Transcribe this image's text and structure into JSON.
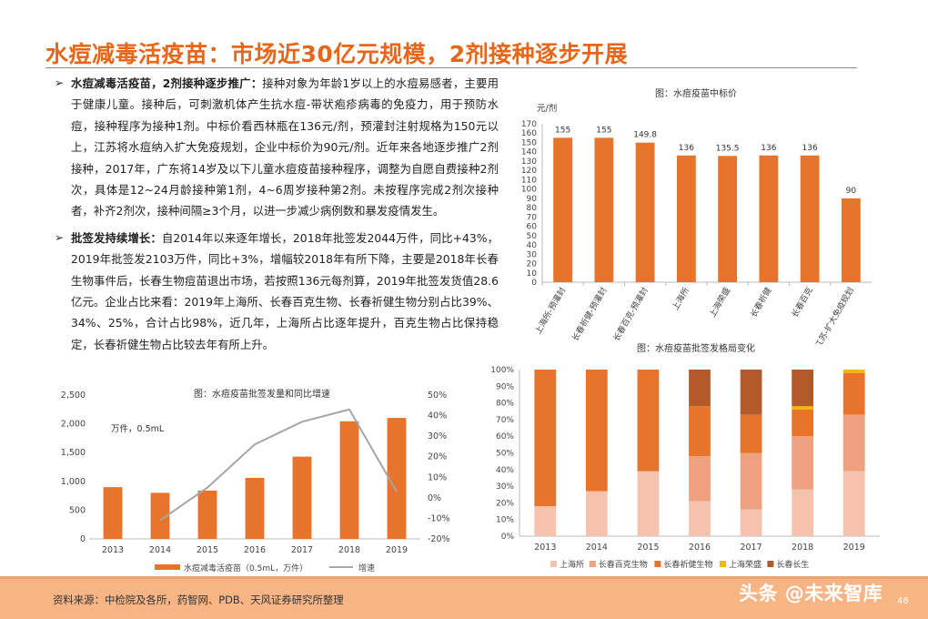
{
  "page": {
    "title": "水痘减毒活疫苗：市场近30亿元规模，2剂接种逐步开展",
    "footer_source": "资料来源：中检院及各所，药智网、PDB、天风证券研究所整理",
    "watermark": "头条 @未来智库",
    "page_number": "48"
  },
  "body": {
    "bullet_symbol": "➢",
    "para1_lead": "水痘减毒活疫苗，2剂接种逐步推广：",
    "para1_text": "接种对象为年龄1岁以上的水痘易感者，主要用于健康儿童。接种后，可刺激机体产生抗水痘-带状疱疹病毒的免疫力，用于预防水痘，接种程序为接种1剂。中标价看西林瓶在136元/剂，预灌封注射规格为150元以上，江苏将水痘纳入扩大免疫规划，企业中标价为90元/剂。近年来各地逐步推广2剂接种，2017年，广东将14岁及以下儿童水痘疫苗接种程序，调整为自愿自费接种2剂次，具体是12~24月龄接种第1剂，4~6周岁接种第2剂。未按程序完成2剂次接种者，补齐2剂次，接种间隔≥3个月，以进一步减少病例数和暴发疫情发生。",
    "para2_lead": "批签发持续增长：",
    "para2_text": "自2014年以来逐年增长，2018年批签发2044万件，同比+43%，2019年批签发2103万件，同比+3%，增幅较2018年有所下降，主要是2018年长春生物事件后，长春生物痘苗退出市场，若按照136元每剂算，2019年批签发货值28.6亿元。企业占比来看：2019年上海所、长春百克生物、长春祈健生物分别占比39%、34%、25%，合计占比98%，近几年，上海所占比逐年提升，百克生物占比保持稳定，长春祈健生物占比较去年有所上升。"
  },
  "chart_data": [
    {
      "id": "bid-price",
      "type": "bar",
      "title": "图：水痘疫苗中标价",
      "ylabel": "元/剂",
      "ylim": [
        0,
        170
      ],
      "yticks": [
        0,
        10,
        20,
        30,
        40,
        50,
        60,
        70,
        80,
        90,
        100,
        110,
        120,
        130,
        140,
        150,
        160,
        170
      ],
      "categories": [
        "上海所-预灌封",
        "长春祈健-预灌封",
        "长春百克-预灌封",
        "上海所",
        "上海荣盛",
        "长春祈健",
        "长春百克",
        "江苏-扩大免疫规划"
      ],
      "values": [
        155,
        155,
        149.8,
        136,
        135.5,
        136,
        136,
        90
      ],
      "data_labels": [
        "155",
        "155",
        "149.8",
        "136",
        "135.5",
        "136",
        "136",
        "90"
      ],
      "color": "#E8732A"
    },
    {
      "id": "share",
      "type": "bar",
      "stacked": true,
      "title": "图：水痘疫苗批签发格局变化",
      "ylim": [
        0,
        100
      ],
      "yticks": [
        "0%",
        "10%",
        "20%",
        "30%",
        "40%",
        "50%",
        "60%",
        "70%",
        "80%",
        "90%",
        "100%"
      ],
      "categories": [
        "2013",
        "2014",
        "2015",
        "2016",
        "2017",
        "2018",
        "2019"
      ],
      "series": [
        {
          "name": "上海所",
          "color": "#F5C2AE",
          "values": [
            18,
            27,
            39,
            21,
            16,
            28,
            39
          ]
        },
        {
          "name": "长春百克生物",
          "color": "#EFA07E",
          "values": [
            0,
            0,
            0,
            27,
            34,
            32,
            34
          ]
        },
        {
          "name": "长春祈健生物",
          "color": "#E8732A",
          "values": [
            82,
            73,
            61,
            30,
            23,
            16,
            25
          ]
        },
        {
          "name": "上海荣盛",
          "color": "#F5B800",
          "values": [
            0,
            0,
            0,
            0,
            0,
            2,
            2
          ]
        },
        {
          "name": "长春长生",
          "color": "#B35A2A",
          "values": [
            0,
            0,
            0,
            22,
            27,
            22,
            0
          ]
        }
      ]
    },
    {
      "id": "batch-release",
      "type": "bar",
      "title": "图：水痘疫苗批签发量和同比增速",
      "unit_note": "万件，0.5mL",
      "categories": [
        "2013",
        "2014",
        "2015",
        "2016",
        "2017",
        "2018",
        "2019"
      ],
      "ylim": [
        0,
        2500
      ],
      "yticks": [
        "0",
        "500",
        "1,000",
        "1,500",
        "2,000",
        "2,500"
      ],
      "y2lim": [
        -20,
        50
      ],
      "y2ticks": [
        "-20%",
        "-10%",
        "0%",
        "10%",
        "20%",
        "30%",
        "40%",
        "50%"
      ],
      "series": [
        {
          "name": "水痘减毒活疫苗（0.5mL，万件）",
          "type": "bar",
          "color": "#E8732A",
          "values": [
            900,
            800,
            840,
            1060,
            1430,
            2044,
            2103
          ]
        },
        {
          "name": "增速",
          "type": "line",
          "color": "#A6A6A6",
          "values": [
            null,
            -11,
            5,
            26,
            37,
            43,
            3
          ]
        }
      ]
    }
  ]
}
